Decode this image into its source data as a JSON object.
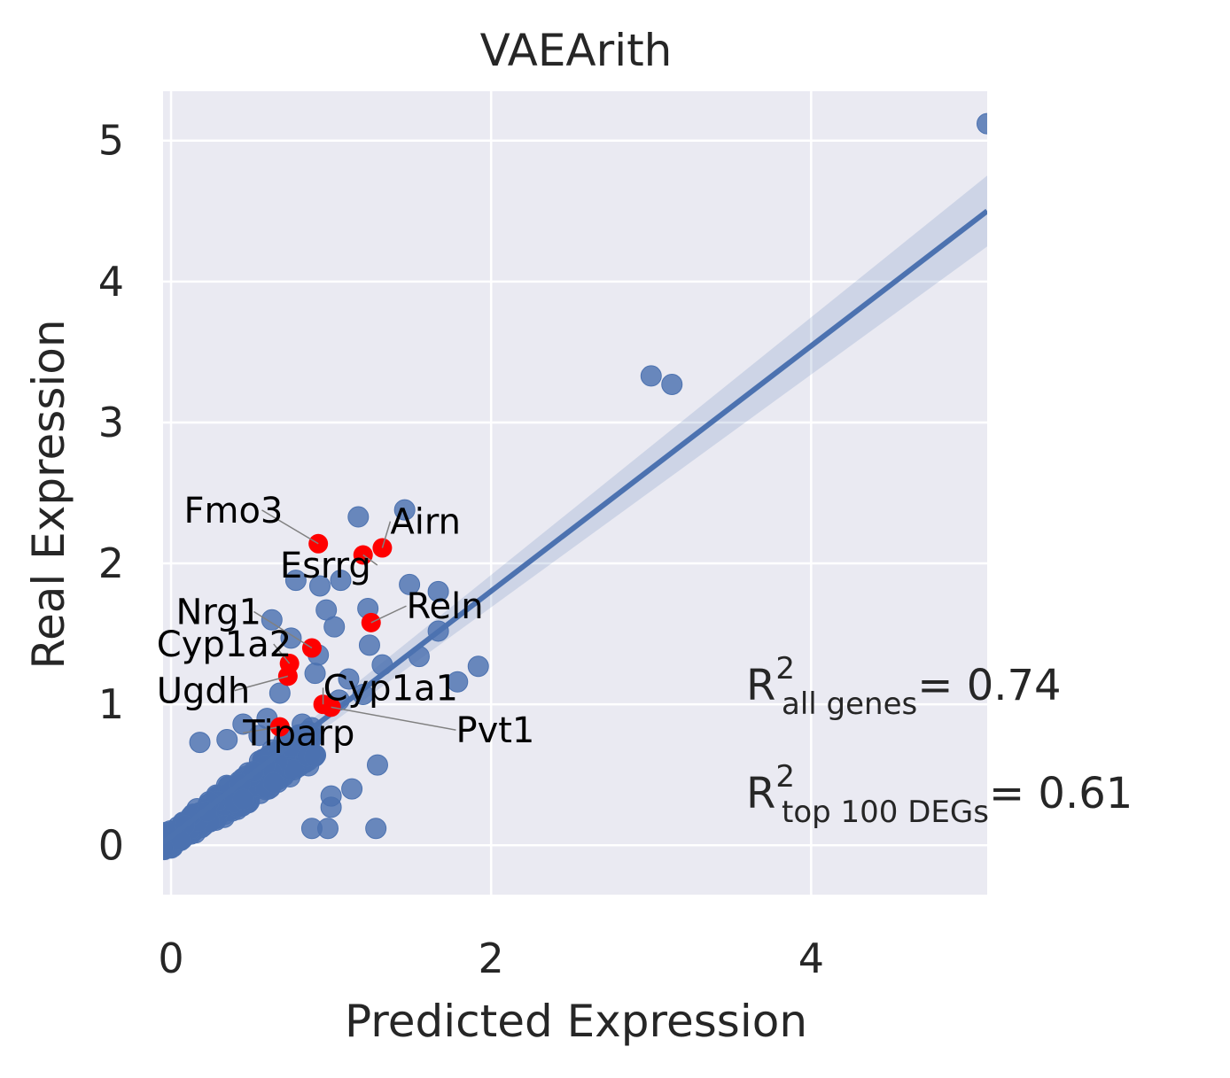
{
  "chart_data": {
    "type": "scatter",
    "title": "VAEArith",
    "xlabel": "Predicted Expression",
    "ylabel": "Real Expression",
    "xlim": [
      -0.05,
      5.1
    ],
    "ylim": [
      -0.35,
      5.35
    ],
    "xticks": [
      0,
      2,
      4
    ],
    "yticks": [
      0,
      1,
      2,
      3,
      4,
      5
    ],
    "grid": true,
    "colors": {
      "background": "#EAEAF2",
      "grid": "#FFFFFF",
      "points": "#4C72B0",
      "highlight": "#FF0000",
      "text": "#262626"
    },
    "regression": {
      "x": [
        -0.05,
        5.1
      ],
      "y": [
        0.02,
        4.5
      ]
    },
    "stats": [
      {
        "label": "R",
        "sup": "2",
        "sub": "all genes",
        "value": "= 0.74"
      },
      {
        "label": "R",
        "sup": "2",
        "sub": "top 100 DEGs",
        "value": "= 0.61"
      }
    ],
    "points": [
      [
        5.1,
        5.12
      ],
      [
        3.0,
        3.33
      ],
      [
        3.13,
        3.27
      ],
      [
        1.46,
        2.38
      ],
      [
        1.17,
        2.33
      ],
      [
        0.93,
        1.84
      ],
      [
        1.06,
        1.88
      ],
      [
        0.78,
        1.88
      ],
      [
        1.49,
        1.85
      ],
      [
        1.67,
        1.8
      ],
      [
        0.97,
        1.67
      ],
      [
        1.23,
        1.68
      ],
      [
        1.02,
        1.55
      ],
      [
        0.63,
        1.6
      ],
      [
        1.67,
        1.52
      ],
      [
        1.55,
        1.34
      ],
      [
        1.92,
        1.27
      ],
      [
        1.79,
        1.16
      ],
      [
        0.75,
        1.47
      ],
      [
        0.92,
        1.35
      ],
      [
        1.24,
        1.42
      ],
      [
        1.32,
        1.28
      ],
      [
        1.11,
        1.18
      ],
      [
        0.18,
        0.73
      ],
      [
        0.35,
        0.75
      ],
      [
        1.29,
        0.57
      ],
      [
        1.13,
        0.4
      ],
      [
        1.0,
        0.35
      ],
      [
        1.0,
        0.27
      ],
      [
        1.28,
        0.12
      ],
      [
        0.98,
        0.12
      ],
      [
        0.88,
        0.12
      ],
      [
        0.6,
        0.9
      ],
      [
        0.68,
        1.08
      ],
      [
        0.45,
        0.86
      ],
      [
        0.55,
        0.78
      ],
      [
        0.82,
        0.86
      ],
      [
        1.05,
        1.03
      ],
      [
        1.2,
        1.07
      ],
      [
        0.9,
        1.22
      ]
    ],
    "highlighted": [
      {
        "gene": "Fmo3",
        "x": 0.92,
        "y": 2.14
      },
      {
        "gene": "Airn",
        "x": 1.32,
        "y": 2.11
      },
      {
        "gene": "Esrrg",
        "x": 1.2,
        "y": 2.06
      },
      {
        "gene": "Reln",
        "x": 1.25,
        "y": 1.58
      },
      {
        "gene": "Nrg1",
        "x": 0.88,
        "y": 1.4
      },
      {
        "gene": "Cyp1a2",
        "x": 0.74,
        "y": 1.29
      },
      {
        "gene": "Ugdh",
        "x": 0.73,
        "y": 1.2
      },
      {
        "gene": "Cyp1a1",
        "x": 0.95,
        "y": 1.0
      },
      {
        "gene": "Pvt1",
        "x": 1.0,
        "y": 0.98
      },
      {
        "gene": "Tiparp",
        "x": 0.68,
        "y": 0.84
      }
    ],
    "labels": [
      {
        "gene": "Fmo3",
        "lx": 0.08,
        "ly": 2.29,
        "anchor": "start"
      },
      {
        "gene": "Airn",
        "lx": 1.37,
        "ly": 2.21,
        "anchor": "start"
      },
      {
        "gene": "Esrrg",
        "lx": 0.68,
        "ly": 1.9,
        "anchor": "start"
      },
      {
        "gene": "Reln",
        "lx": 1.47,
        "ly": 1.61,
        "anchor": "start"
      },
      {
        "gene": "Nrg1",
        "lx": 0.03,
        "ly": 1.57,
        "anchor": "start"
      },
      {
        "gene": "Cyp1a2",
        "lx": -0.09,
        "ly": 1.34,
        "anchor": "start"
      },
      {
        "gene": "Ugdh",
        "lx": -0.09,
        "ly": 1.01,
        "anchor": "start"
      },
      {
        "gene": "Cyp1a1",
        "lx": 0.95,
        "ly": 1.03,
        "anchor": "start"
      },
      {
        "gene": "Pvt1",
        "lx": 1.78,
        "ly": 0.73,
        "anchor": "start"
      },
      {
        "gene": "Tiparp",
        "lx": 0.45,
        "ly": 0.71,
        "anchor": "start"
      }
    ]
  }
}
